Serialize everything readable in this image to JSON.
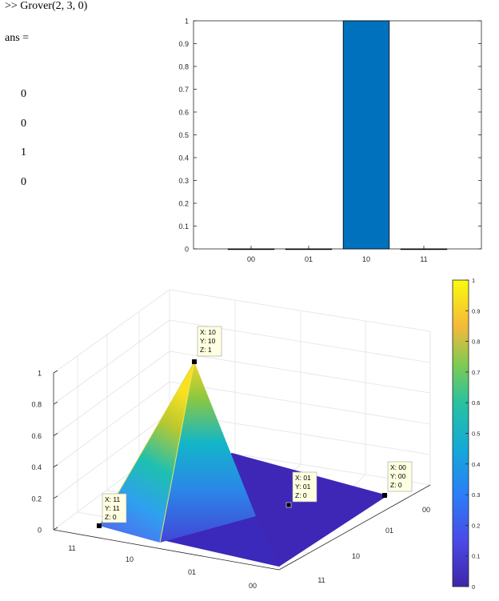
{
  "console": {
    "command": ">> Grover(2, 3, 0)",
    "ans_label": "ans =",
    "ans_values": [
      "0",
      "0",
      "1",
      "0"
    ]
  },
  "bar_chart": {
    "type": "bar",
    "categories": [
      "00",
      "01",
      "10",
      "11"
    ],
    "values": [
      0,
      0,
      1,
      0
    ],
    "ylim": [
      0,
      1
    ],
    "yticks": [
      "0",
      "0.1",
      "0.2",
      "0.3",
      "0.4",
      "0.5",
      "0.6",
      "0.7",
      "0.8",
      "0.9",
      "1"
    ],
    "bar_color": "#0072bd"
  },
  "surface_chart": {
    "type": "surface",
    "x_ticks": [
      "11",
      "10",
      "01",
      "00"
    ],
    "y_ticks": [
      "00",
      "01",
      "10",
      "11"
    ],
    "z_ticks": [
      "0",
      "0.2",
      "0.4",
      "0.6",
      "0.8",
      "1"
    ],
    "zlim": [
      0,
      1
    ],
    "datatips": [
      {
        "id": "tip-peak",
        "x": "X: 10",
        "y": "Y: 10",
        "z": "Z: 1"
      },
      {
        "id": "tip-11",
        "x": "X: 11",
        "y": "Y: 11",
        "z": "Z: 0"
      },
      {
        "id": "tip-01",
        "x": "X: 01",
        "y": "Y: 01",
        "z": "Z: 0"
      },
      {
        "id": "tip-00",
        "x": "X: 00",
        "y": "Y: 00",
        "z": "Z: 0"
      }
    ]
  },
  "colorbar": {
    "ticks": [
      "0",
      "0.1",
      "0.2",
      "0.3",
      "0.4",
      "0.5",
      "0.6",
      "0.7",
      "0.8",
      "0.9",
      "1"
    ],
    "colormap": "parula",
    "low_color": "#3e26a8",
    "high_color": "#f9fb0e"
  }
}
